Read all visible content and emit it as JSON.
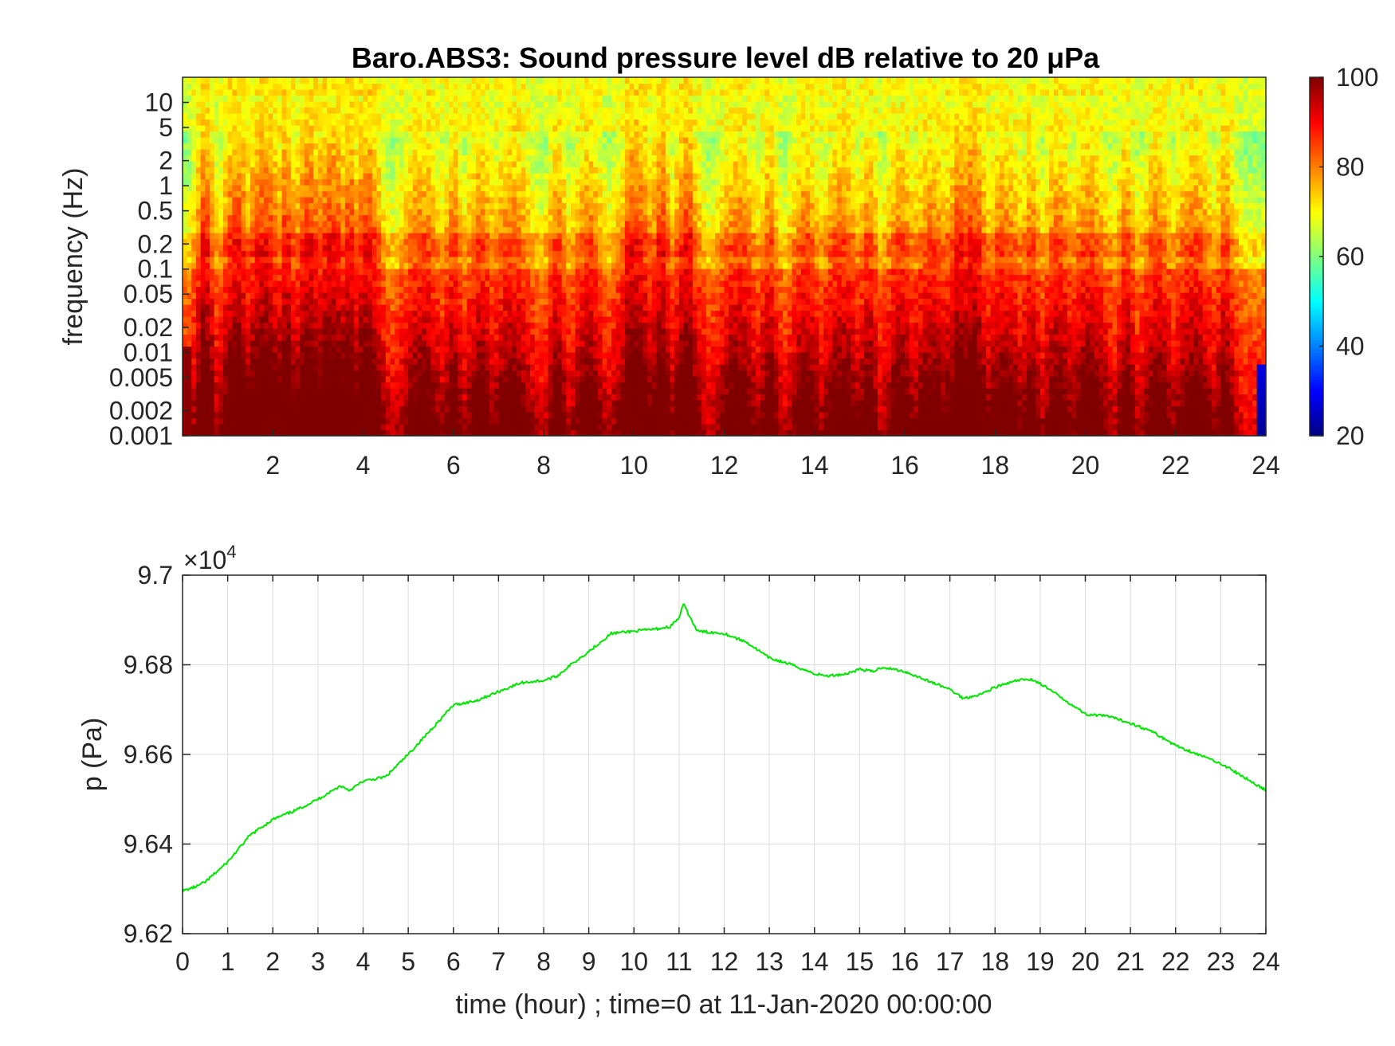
{
  "chart_data": [
    {
      "type": "heatmap",
      "title": "Baro.ABS3: Sound pressure level dB relative to 20 μPa",
      "xlabel": "",
      "ylabel": "frequency (Hz)",
      "x_range": [
        0,
        24
      ],
      "x_ticks": [
        "2",
        "4",
        "6",
        "8",
        "10",
        "12",
        "14",
        "16",
        "18",
        "20",
        "22",
        "24"
      ],
      "y_scale": "log",
      "y_range": [
        0.001,
        20
      ],
      "y_ticks": [
        "10",
        "5",
        "2",
        "1",
        "0.5",
        "0.2",
        "0.1",
        "0.05",
        "0.02",
        "0.01",
        "0.005",
        "0.002",
        "0.001"
      ],
      "colorbar": {
        "range": [
          20,
          100
        ],
        "ticks": [
          "100",
          "80",
          "60",
          "40",
          "20"
        ],
        "colormap": "jet"
      },
      "activity_hours": [
        0.5,
        1.2,
        1.8,
        2.3,
        2.8,
        3.3,
        3.7,
        4.1,
        5.3,
        6.0,
        6.6,
        7.3,
        8.3,
        9.0,
        10.0,
        10.6,
        11.2,
        12.3,
        13.0,
        13.8,
        14.6,
        15.2,
        15.9,
        16.6,
        17.2,
        17.5,
        18.2,
        18.8,
        19.4,
        20.1,
        20.9,
        21.6,
        22.4,
        23.1
      ]
    },
    {
      "type": "line",
      "xlabel": "time (hour) ; time=0 at 11-Jan-2020 00:00:00",
      "ylabel": "p (Pa)",
      "y_multiplier": "×10",
      "y_multiplier_exp": "4",
      "xlim": [
        0,
        24
      ],
      "ylim": [
        96200,
        97000
      ],
      "x_ticks": [
        "0",
        "1",
        "2",
        "3",
        "4",
        "5",
        "6",
        "7",
        "8",
        "9",
        "10",
        "11",
        "12",
        "13",
        "14",
        "15",
        "16",
        "17",
        "18",
        "19",
        "20",
        "21",
        "22",
        "23",
        "24"
      ],
      "y_ticks": [
        "9.62",
        "9.64",
        "9.66",
        "9.68",
        "9.7"
      ],
      "grid": true,
      "series": [
        {
          "color": "#00e600",
          "x": [
            0,
            0.3,
            0.5,
            1.0,
            1.5,
            2.0,
            2.5,
            3.0,
            3.5,
            3.7,
            4.0,
            4.5,
            5.0,
            5.5,
            6.0,
            6.5,
            7.0,
            7.5,
            8.0,
            8.3,
            8.6,
            9.0,
            9.5,
            10.0,
            10.5,
            10.8,
            11.0,
            11.1,
            11.4,
            12.0,
            12.5,
            13.0,
            13.5,
            14.0,
            14.3,
            14.7,
            15.0,
            15.3,
            15.5,
            16.0,
            16.5,
            17.0,
            17.3,
            17.7,
            18.0,
            18.5,
            18.8,
            19.0,
            19.5,
            20.0,
            20.5,
            21.0,
            21.5,
            22.0,
            22.5,
            23.0,
            23.5,
            24.0
          ],
          "y": [
            96295,
            96305,
            96315,
            96360,
            96420,
            96455,
            96475,
            96500,
            96530,
            96520,
            96540,
            96550,
            96600,
            96655,
            96710,
            96720,
            96740,
            96760,
            96765,
            96775,
            96800,
            96830,
            96870,
            96875,
            96880,
            96885,
            96905,
            96935,
            96875,
            96870,
            96850,
            96815,
            96800,
            96780,
            96775,
            96780,
            96790,
            96785,
            96795,
            96785,
            96765,
            96745,
            96725,
            96735,
            96750,
            96765,
            96768,
            96758,
            96725,
            96690,
            96685,
            96670,
            96650,
            96620,
            96600,
            96580,
            96550,
            96520
          ]
        }
      ]
    }
  ]
}
